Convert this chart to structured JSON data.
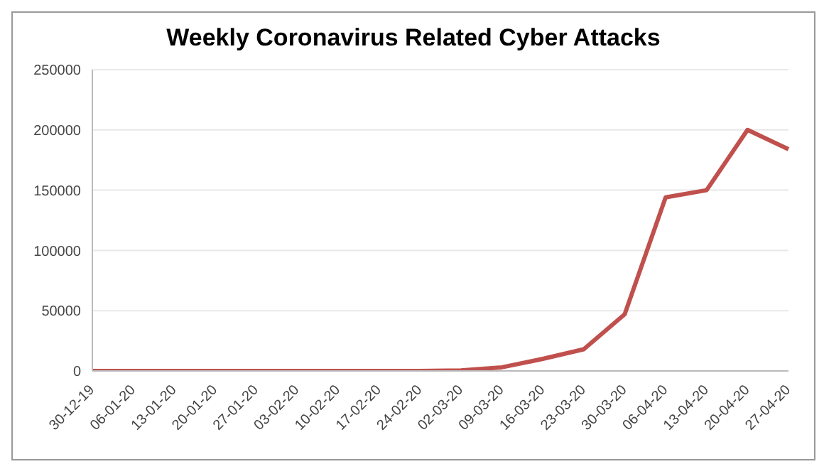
{
  "chart_data": {
    "type": "line",
    "title": "Weekly Coronavirus Related Cyber Attacks",
    "categories": [
      "30-12-19",
      "06-01-20",
      "13-01-20",
      "20-01-20",
      "27-01-20",
      "03-02-20",
      "10-02-20",
      "17-02-20",
      "24-02-20",
      "02-03-20",
      "09-03-20",
      "16-03-20",
      "23-03-20",
      "30-03-20",
      "06-04-20",
      "13-04-20",
      "20-04-20",
      "27-04-20"
    ],
    "series": [
      {
        "color": "#c0504d",
        "values": [
          0,
          0,
          0,
          0,
          0,
          0,
          0,
          0,
          0,
          500,
          3000,
          10000,
          18000,
          47000,
          144000,
          150000,
          200000,
          184000
        ]
      }
    ],
    "ylim": [
      0,
      250000
    ],
    "yticks": [
      0,
      50000,
      100000,
      150000,
      200000,
      250000
    ],
    "grid": "y",
    "marker": "none",
    "line_style": "solid"
  }
}
